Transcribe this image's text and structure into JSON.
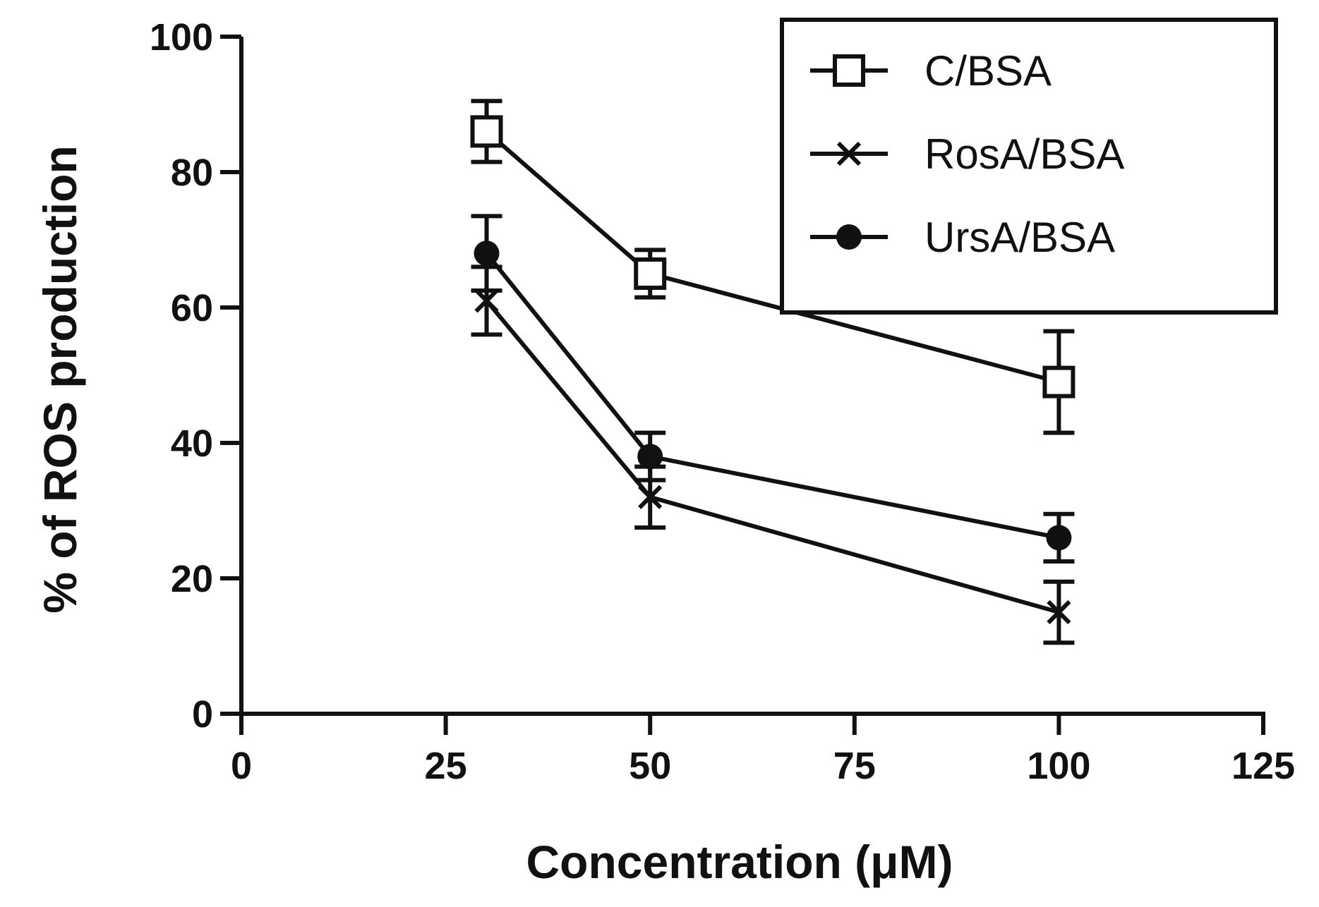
{
  "chart_data": {
    "type": "line",
    "title": "",
    "xlabel": "Concentration (μM)",
    "ylabel": "% of ROS production",
    "xlim": [
      0,
      125
    ],
    "ylim": [
      0,
      100
    ],
    "xticks": [
      "0",
      "25",
      "50",
      "75",
      "100",
      "125"
    ],
    "yticks": [
      "0",
      "20",
      "40",
      "60",
      "80",
      "100"
    ],
    "grid": false,
    "legend_position": "top-right",
    "x": [
      30,
      50,
      100
    ],
    "series": [
      {
        "name": "C/BSA",
        "marker": "open-square",
        "values": [
          86,
          65,
          49
        ],
        "errors": [
          4.5,
          3.5,
          7.5
        ]
      },
      {
        "name": "RosA/BSA",
        "marker": "cross",
        "values": [
          61,
          32,
          15
        ],
        "errors": [
          5,
          4.5,
          4.5
        ]
      },
      {
        "name": "UrsA/BSA",
        "marker": "filled-circle",
        "values": [
          68,
          38,
          26
        ],
        "errors": [
          5.5,
          3.5,
          3.5
        ]
      }
    ]
  },
  "colors": {
    "ink": "#111111",
    "background": "#ffffff"
  }
}
